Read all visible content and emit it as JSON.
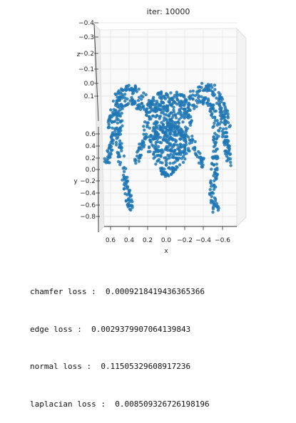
{
  "chart_data": {
    "type": "scatter",
    "projection": "3d",
    "title": "iter: 10000",
    "xlabel": "x",
    "ylabel": "y",
    "zlabel": "z",
    "x_ticks": [
      "0.6",
      "0.4",
      "0.2",
      "0.0",
      "−0.2",
      "−0.4",
      "−0.6"
    ],
    "y_ticks": [
      "0.6",
      "0.4",
      "0.2",
      "0.0",
      "−0.2",
      "−0.4",
      "−0.6",
      "−0.8"
    ],
    "z_ticks": [
      "−0.4",
      "−0.3",
      "−0.2",
      "−0.1",
      "0.0",
      "0.1"
    ],
    "grid": true,
    "point_color": "#1f77b4",
    "pane_color": "#f2f2f2"
  },
  "losses": [
    {
      "label": "chamfer loss :",
      "value": "0.0009218419436365366"
    },
    {
      "label": "edge loss :",
      "value": "0.0029379907064139843"
    },
    {
      "label": "normal loss :",
      "value": "0.11505329608917236"
    },
    {
      "label": "laplacian loss :",
      "value": "0.008509326726198196"
    }
  ]
}
